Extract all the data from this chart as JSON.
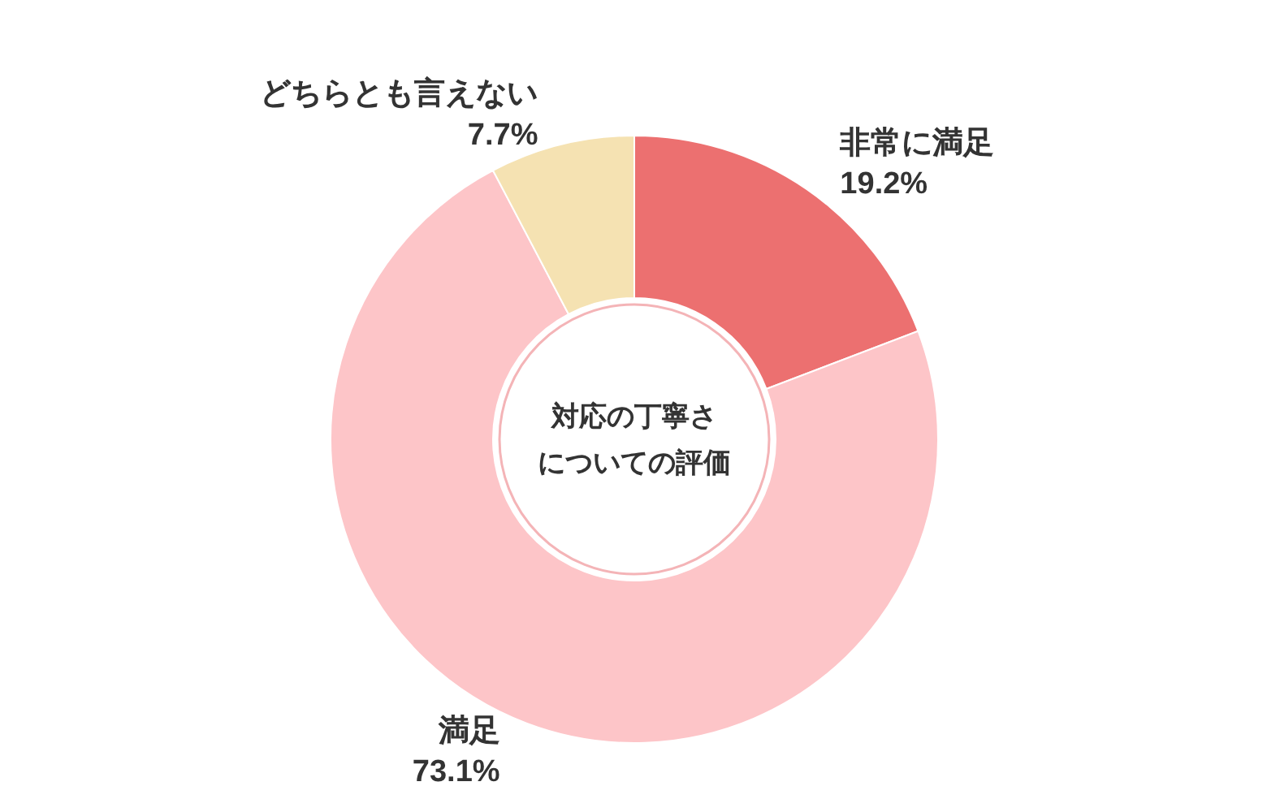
{
  "chart_data": {
    "type": "donut",
    "title": "対応の丁寧さについての評価",
    "categories": [
      "非常に満足",
      "満足",
      "どちらとも言えない"
    ],
    "values": [
      19.2,
      73.1,
      7.7
    ],
    "colors": [
      "#ec7070",
      "#fdc5c8",
      "#f5e2b2"
    ],
    "value_labels": [
      "19.2%",
      "73.1%",
      "7.7%"
    ]
  }
}
